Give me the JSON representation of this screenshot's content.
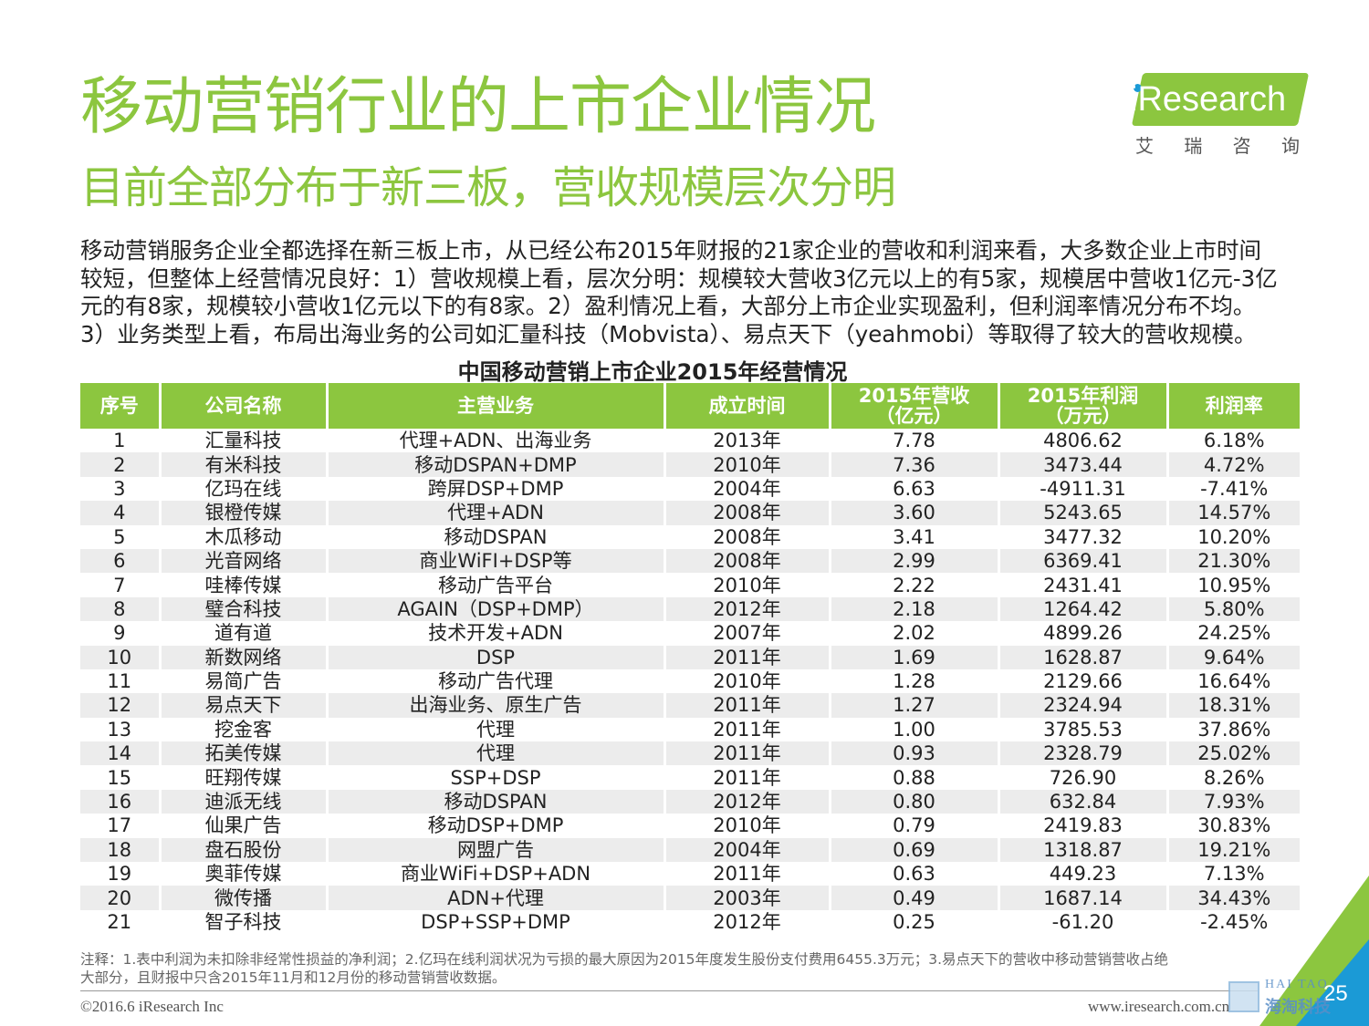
{
  "header": {
    "title": "移动营销行业的上市企业情况",
    "subtitle": "目前全部分布于新三板，营收规模层次分明"
  },
  "logo": {
    "brand": "iResearch",
    "cn_chars": [
      "艾",
      "瑞",
      "咨",
      "询"
    ],
    "color": "#8cc63f",
    "dot_color": "#1b9ad6"
  },
  "intro": {
    "lines": [
      "移动营销服务企业全都选择在新三板上市，从已经公布2015年财报的21家企业的营收和利润来看，大多数企业上市时间",
      "较短，但整体上经营情况良好：1）营收规模上看，层次分明：规模较大营收3亿元以上的有5家，规模居中营收1亿元-3亿",
      "元的有8家，规模较小营收1亿元以下的有8家。2）盈利情况上看，大部分上市企业实现盈利，但利润率情况分布不均。",
      "3）业务类型上看，布局出海业务的公司如汇量科技（Mobvista）、易点天下（yeahmobi）等取得了较大的营收规模。"
    ]
  },
  "table": {
    "title": "中国移动营销上市企业2015年经营情况",
    "headers": {
      "no": "序号",
      "name": "公司名称",
      "business": "主营业务",
      "founded": "成立时间",
      "revenue_1": "2015年营收",
      "revenue_2": "（亿元）",
      "profit_1": "2015年利润",
      "profit_2": "（万元）",
      "margin": "利润率"
    },
    "rows": [
      [
        "1",
        "汇量科技",
        "代理+ADN、出海业务",
        "2013年",
        "7.78",
        "4806.62",
        "6.18%"
      ],
      [
        "2",
        "有米科技",
        "移动DSPAN+DMP",
        "2010年",
        "7.36",
        "3473.44",
        "4.72%"
      ],
      [
        "3",
        "亿玛在线",
        "跨屏DSP+DMP",
        "2004年",
        "6.63",
        "-4911.31",
        "-7.41%"
      ],
      [
        "4",
        "银橙传媒",
        "代理+ADN",
        "2008年",
        "3.60",
        "5243.65",
        "14.57%"
      ],
      [
        "5",
        "木瓜移动",
        "移动DSPAN",
        "2008年",
        "3.41",
        "3477.32",
        "10.20%"
      ],
      [
        "6",
        "光音网络",
        "商业WiFI+DSP等",
        "2008年",
        "2.99",
        "6369.41",
        "21.30%"
      ],
      [
        "7",
        "哇棒传媒",
        "移动广告平台",
        "2010年",
        "2.22",
        "2431.41",
        "10.95%"
      ],
      [
        "8",
        "璧合科技",
        "AGAIN（DSP+DMP）",
        "2012年",
        "2.18",
        "1264.42",
        "5.80%"
      ],
      [
        "9",
        "道有道",
        "技术开发+ADN",
        "2007年",
        "2.02",
        "4899.26",
        "24.25%"
      ],
      [
        "10",
        "新数网络",
        "DSP",
        "2011年",
        "1.69",
        "1628.87",
        "9.64%"
      ],
      [
        "11",
        "易简广告",
        "移动广告代理",
        "2010年",
        "1.28",
        "2129.66",
        "16.64%"
      ],
      [
        "12",
        "易点天下",
        "出海业务、原生广告",
        "2011年",
        "1.27",
        "2324.94",
        "18.31%"
      ],
      [
        "13",
        "挖金客",
        "代理",
        "2011年",
        "1.00",
        "3785.53",
        "37.86%"
      ],
      [
        "14",
        "拓美传媒",
        "代理",
        "2011年",
        "0.93",
        "2328.79",
        "25.02%"
      ],
      [
        "15",
        "旺翔传媒",
        "SSP+DSP",
        "2011年",
        "0.88",
        "726.90",
        "8.26%"
      ],
      [
        "16",
        "迪派无线",
        "移动DSPAN",
        "2012年",
        "0.80",
        "632.84",
        "7.93%"
      ],
      [
        "17",
        "仙果广告",
        "移动DSP+DMP",
        "2010年",
        "0.79",
        "2419.83",
        "30.83%"
      ],
      [
        "18",
        "盘石股份",
        "网盟广告",
        "2004年",
        "0.69",
        "1318.87",
        "19.21%"
      ],
      [
        "19",
        "奥菲传媒",
        "商业WiFi+DSP+ADN",
        "2011年",
        "0.63",
        "449.23",
        "7.13%"
      ],
      [
        "20",
        "微传播",
        "ADN+代理",
        "2003年",
        "0.49",
        "1687.14",
        "34.43%"
      ],
      [
        "21",
        "智子科技",
        "DSP+SSP+DMP",
        "2012年",
        "0.25",
        "-61.20",
        "-2.45%"
      ]
    ],
    "header_color": "#8cc63f",
    "stripe_color": "#ececec"
  },
  "footer": {
    "note_lines": [
      "注释：1.表中利润为未扣除非经常性损益的净利润；2.亿玛在线利润状况为亏损的最大原因为2015年度发生股份支付费用6455.3万元；3.易点天下的营收中移动营销营收占绝",
      "大部分，且财报中只含2015年11月和12月份的移动营销营收数据。"
    ],
    "copyright": "©2016.6 iResearch Inc",
    "website": "www.iresearch.com.cn",
    "page_number": "25",
    "watermark_en": "HAI TAO",
    "watermark_cn": "海淘科技"
  }
}
